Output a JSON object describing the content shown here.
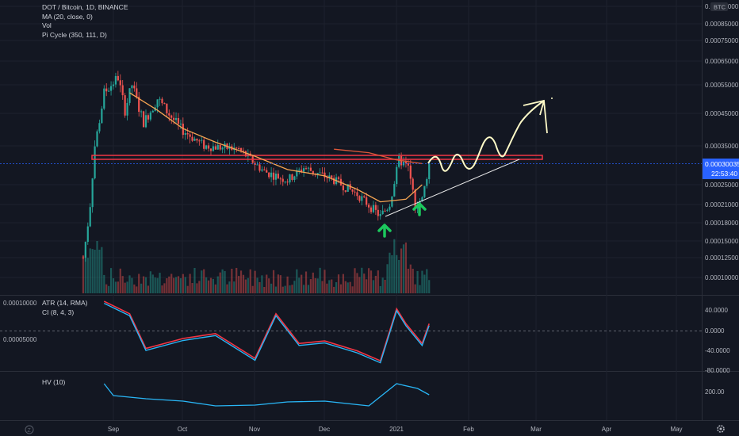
{
  "legend": {
    "symbol": "DOT / Bitcoin, 1D, BINANCE",
    "ma": "MA (20, close, 0)",
    "vol": "Vol",
    "picycle": "Pi Cycle (350, 111, D)"
  },
  "price_axis": {
    "ticks": [
      "0.00095000",
      "0.00085000",
      "0.00075000",
      "0.00065000",
      "0.00055000",
      "0.00045000",
      "0.00035000",
      "0.00025000",
      "0.00021000",
      "0.00018000",
      "0.00015000",
      "0.00012500",
      "0.00010000"
    ],
    "badge": "BTC",
    "last_price": "0.00030035",
    "countdown": "22:53:40"
  },
  "atr_pane": {
    "legend": [
      "ATR (14, RMA)",
      "CI (8, 4, 3)"
    ],
    "left_ticks": [
      "0.00010000",
      "0.00005000"
    ],
    "right_ticks": [
      "40.0000",
      "0.0000",
      "-40.0000",
      "-80.0000"
    ]
  },
  "hv_pane": {
    "legend": "HV (10)",
    "right_ticks": [
      "200.00"
    ]
  },
  "time_axis": {
    "labels": [
      "Sep",
      "Oct",
      "Nov",
      "Dec",
      "2021",
      "Feb",
      "Mar",
      "Apr",
      "May"
    ]
  },
  "colors": {
    "background": "#131722",
    "up": "#26a69a",
    "down": "#ef5350",
    "ma": "#f6a552",
    "picycle": "#e0583a",
    "resistance": "#f23645",
    "drawing": "#fffbc8",
    "arrow": "#1cc85d",
    "atr_line": "#f23645",
    "ci_line": "#29b6f6",
    "hv_line": "#29b6f6",
    "last_price_badge": "#2962ff"
  },
  "icons": [
    "tv-logo-icon",
    "settings-gear-icon"
  ],
  "chart_data": [
    {
      "type": "candlestick",
      "title": "DOT / Bitcoin, 1D, BINANCE",
      "scale": "log",
      "ylim": [
        9e-05,
        0.001
      ],
      "series": [
        {
          "name": "MA (20, close, 0)",
          "dates": [
            "2020-09-08",
            "2020-09-20",
            "2020-10-01",
            "2020-10-15",
            "2020-11-01",
            "2020-11-15",
            "2020-12-01",
            "2020-12-15",
            "2020-12-25",
            "2021-01-05",
            "2021-01-12"
          ],
          "values": [
            0.00052,
            0.00046,
            0.0004,
            0.00036,
            0.00032,
            0.000285,
            0.00027,
            0.00024,
            0.000215,
            0.00022,
            0.00025
          ]
        },
        {
          "name": "Pi Cycle (350, 111, D)",
          "dates": [
            "2020-12-05",
            "2020-12-20",
            "2021-01-01",
            "2021-01-12"
          ],
          "values": [
            0.00034,
            0.00033,
            0.00031,
            0.0003
          ]
        }
      ],
      "last_price": 0.00030035,
      "resistance_zone": [
        0.000305,
        0.000318
      ],
      "annotations": [
        "arrow-up at 2020-12-28 low",
        "arrow-up at 2021-01-08 low",
        "ascending trendline",
        "hand-drawn wave projection to Mar"
      ]
    },
    {
      "type": "line",
      "title": "ATR (14, RMA) / CI (8, 4, 3)",
      "ylim": [
        -80,
        60
      ],
      "series": [
        {
          "name": "CI (8, 4, 3)",
          "dates": [
            "2020-08-28",
            "2020-09-08",
            "2020-09-15",
            "2020-10-01",
            "2020-10-15",
            "2020-11-01",
            "2020-11-10",
            "2020-11-20",
            "2020-12-01",
            "2020-12-15",
            "2020-12-25",
            "2021-01-01",
            "2021-01-05",
            "2021-01-12",
            "2021-01-15"
          ],
          "values": [
            55,
            30,
            -40,
            -20,
            -10,
            -60,
            30,
            -30,
            -25,
            -45,
            -65,
            40,
            10,
            -30,
            10
          ]
        }
      ]
    },
    {
      "type": "line",
      "title": "HV (10)",
      "series": [
        {
          "name": "HV (10)",
          "dates": [
            "2020-08-28",
            "2020-09-01",
            "2020-09-15",
            "2020-10-01",
            "2020-10-15",
            "2020-11-01",
            "2020-11-15",
            "2020-12-01",
            "2020-12-20",
            "2021-01-01",
            "2021-01-10",
            "2021-01-15"
          ],
          "values": [
            250,
            175,
            155,
            140,
            110,
            115,
            135,
            140,
            110,
            250,
            220,
            180
          ]
        }
      ]
    }
  ]
}
